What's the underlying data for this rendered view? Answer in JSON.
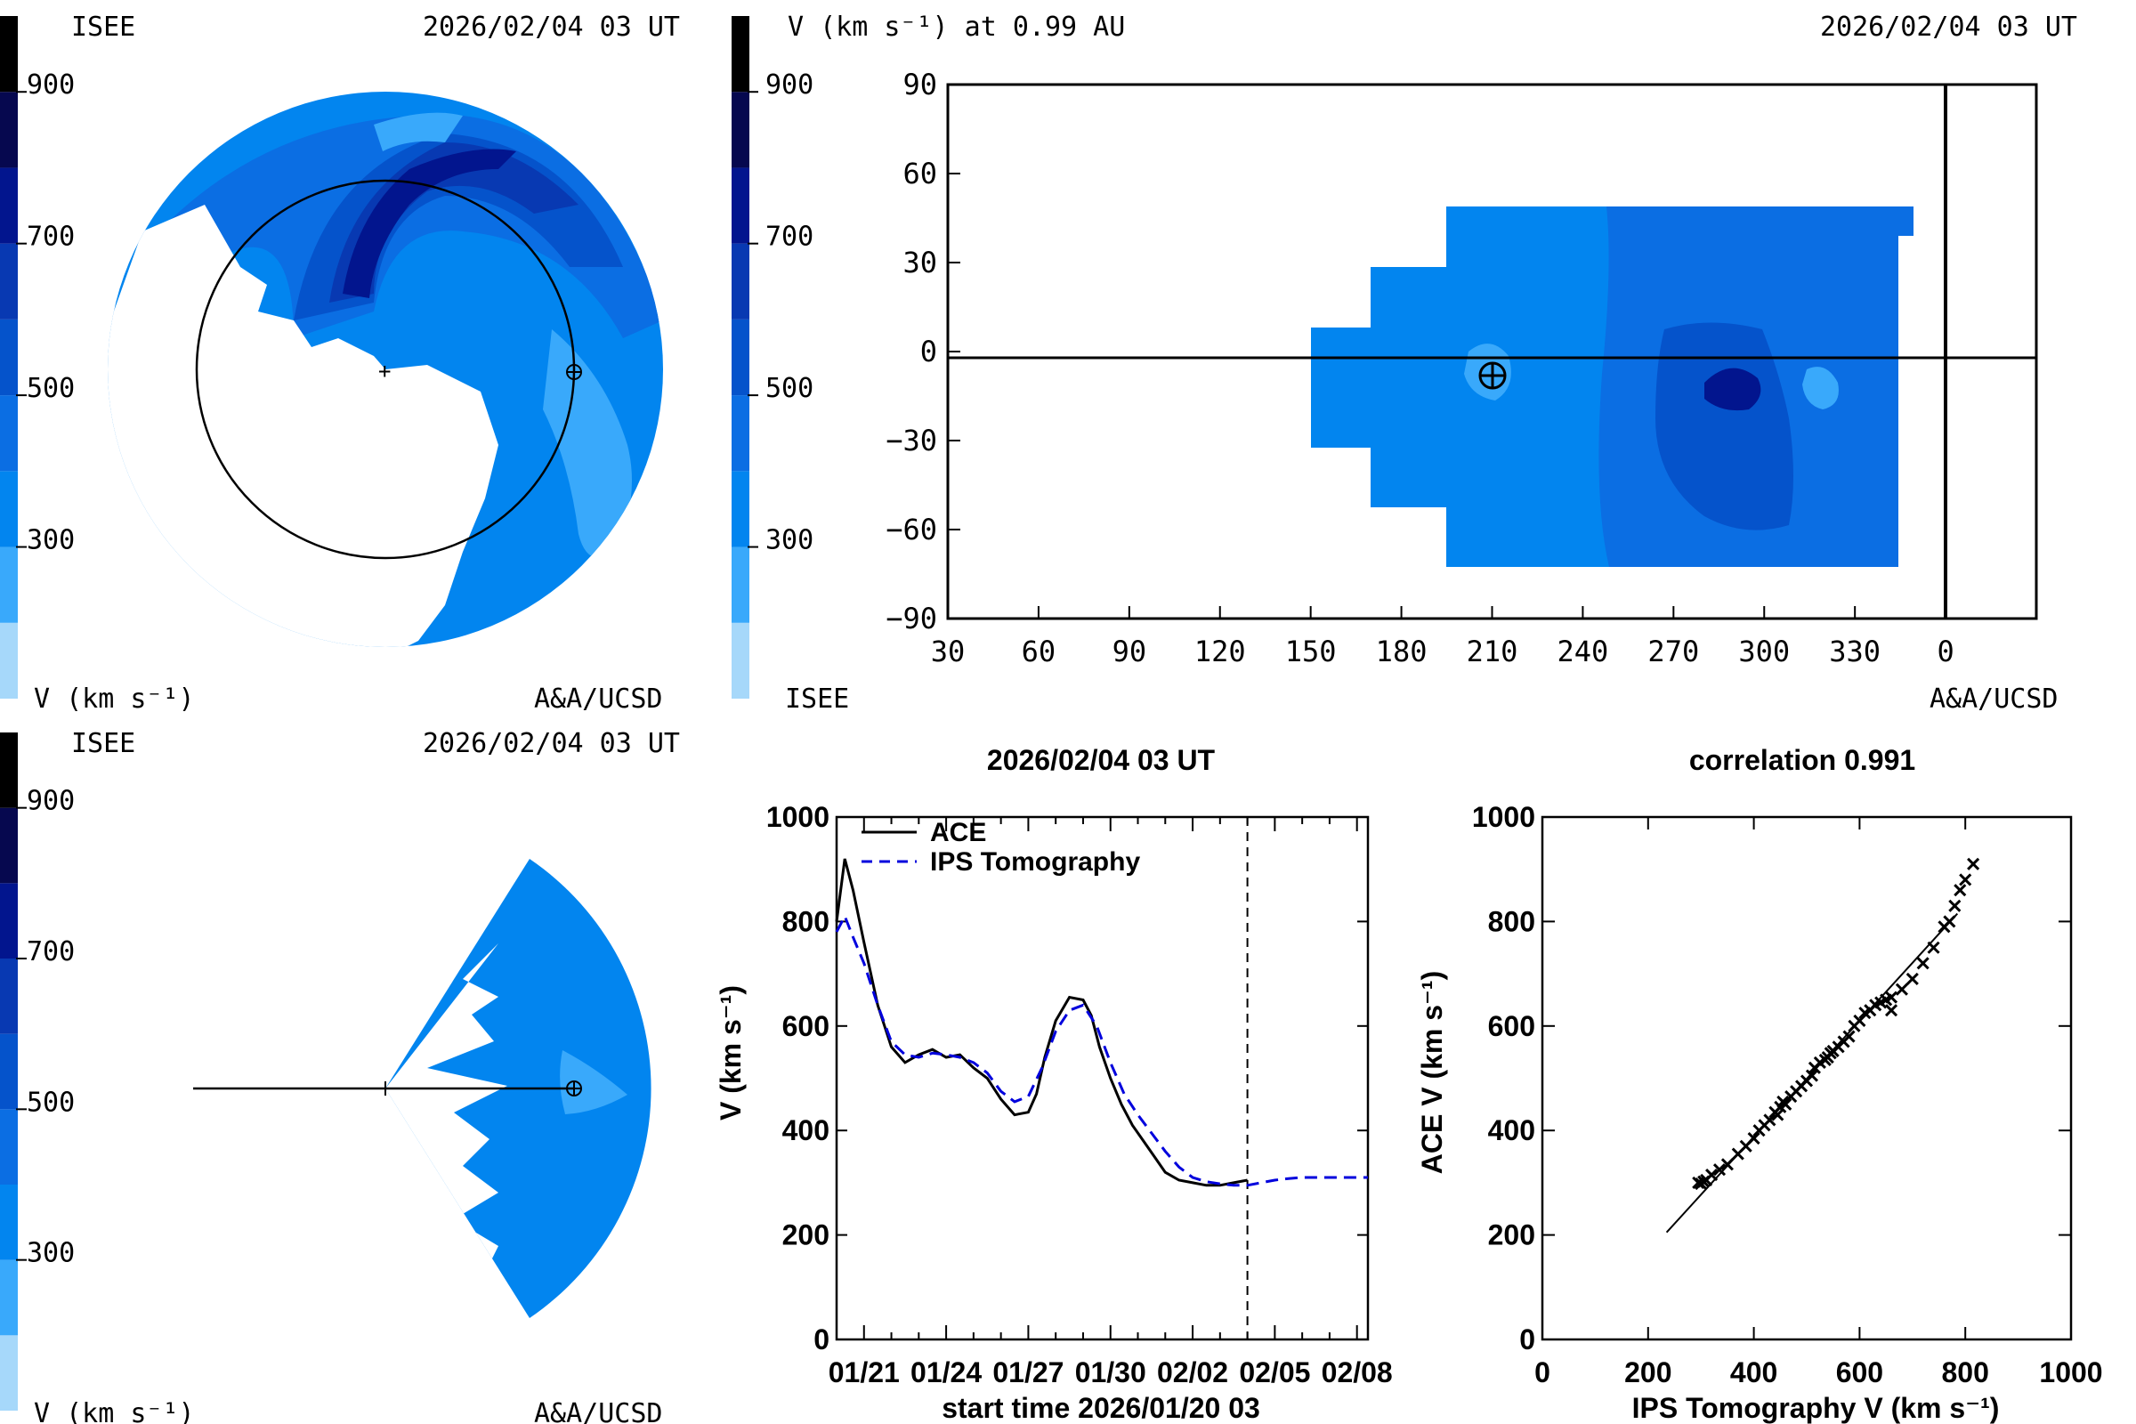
{
  "colors": {
    "c150": "#a6d8fa",
    "c250": "#39a9fb",
    "c350": "#0285ef",
    "c450": "#0b6ee3",
    "c550": "#0553cb",
    "c650": "#0839b2",
    "c750": "#02158e",
    "c850": "#06084f",
    "c950": "#000000",
    "line_blue": "#0000dd"
  },
  "colorbar": {
    "ticks": [
      "300",
      "500",
      "700",
      "900"
    ],
    "units_label": "V (km s⁻¹)"
  },
  "panel_tl": {
    "brand": "ISEE",
    "timestamp": "2026/02/04 03 UT",
    "units": "V (km s⁻¹)",
    "credit": "A&A/UCSD"
  },
  "panel_tr": {
    "title": "V (km s⁻¹) at 0.99 AU",
    "timestamp": "2026/02/04 03 UT",
    "brand": "ISEE",
    "credit": "A&A/UCSD",
    "chart_data": {
      "type": "heatmap",
      "x_ticks": [
        "30",
        "60",
        "90",
        "120",
        "150",
        "180",
        "210",
        "240",
        "270",
        "300",
        "330",
        "0"
      ],
      "y_ticks": [
        "90",
        "60",
        "30",
        "0",
        "−30",
        "−60",
        "−90"
      ],
      "xlim": [
        30,
        390
      ],
      "ylim": [
        -90,
        90
      ],
      "earth_position": [
        210,
        -6
      ],
      "vertical_marker_x": 360,
      "horizontal_marker_y": 0
    }
  },
  "panel_bl": {
    "brand": "ISEE",
    "timestamp": "2026/02/04 03 UT",
    "units": "V (km s⁻¹)",
    "credit": "A&A/UCSD"
  },
  "panel_br_timeseries": {
    "title": "2026/02/04 03 UT",
    "chart_data": {
      "type": "line",
      "ylabel": "V (km s⁻¹)",
      "xlabel": "start time 2026/01/20 03",
      "x_tick_labels": [
        "01/21",
        "01/24",
        "01/27",
        "01/30",
        "02/02",
        "02/05",
        "02/08"
      ],
      "x_tick_days": [
        1,
        4,
        7,
        10,
        13,
        16,
        19
      ],
      "xlim": [
        0,
        19.4
      ],
      "ylim": [
        0,
        1000
      ],
      "y_ticks": [
        "0",
        "200",
        "400",
        "600",
        "800",
        "1000"
      ],
      "now_day": 15,
      "series": [
        {
          "name": "ACE",
          "x": [
            0,
            0.3,
            0.6,
            1,
            1.5,
            2,
            2.5,
            3,
            3.5,
            4,
            4.5,
            5,
            5.5,
            6,
            6.5,
            7,
            7.3,
            7.6,
            8,
            8.5,
            9,
            9.3,
            9.6,
            10,
            10.4,
            10.8,
            11.2,
            11.6,
            12,
            12.5,
            13,
            13.5,
            14,
            14.5,
            15
          ],
          "y": [
            800,
            920,
            860,
            760,
            640,
            560,
            530,
            545,
            555,
            540,
            545,
            520,
            500,
            460,
            430,
            435,
            470,
            540,
            610,
            655,
            650,
            620,
            560,
            500,
            450,
            410,
            380,
            350,
            320,
            305,
            300,
            295,
            295,
            300,
            305
          ]
        },
        {
          "name": "IPS Tomography",
          "x": [
            0,
            0.3,
            0.6,
            1,
            1.5,
            2,
            2.5,
            3,
            3.5,
            4,
            4.5,
            5,
            5.5,
            6,
            6.5,
            7,
            7.5,
            8,
            8.5,
            9,
            9.5,
            10,
            10.5,
            11,
            11.5,
            12,
            12.5,
            13,
            13.5,
            14,
            14.5,
            15,
            15.5,
            16,
            16.5,
            17,
            17.5,
            18,
            18.5,
            19,
            19.4
          ],
          "y": [
            780,
            810,
            770,
            720,
            640,
            570,
            545,
            540,
            548,
            545,
            540,
            530,
            510,
            475,
            455,
            465,
            520,
            590,
            630,
            640,
            600,
            530,
            470,
            430,
            395,
            360,
            330,
            310,
            302,
            298,
            295,
            295,
            300,
            305,
            308,
            310,
            310,
            310,
            310,
            310,
            310
          ]
        }
      ]
    }
  },
  "panel_br_scatter": {
    "title": "correlation 0.991",
    "chart_data": {
      "type": "scatter",
      "xlabel": "IPS Tomography V (km s⁻¹)",
      "ylabel": "ACE V (km s⁻¹)",
      "xlim": [
        0,
        1000
      ],
      "ylim": [
        0,
        1000
      ],
      "x_ticks": [
        "0",
        "200",
        "400",
        "600",
        "800",
        "1000"
      ],
      "y_ticks": [
        "0",
        "200",
        "400",
        "600",
        "800",
        "1000"
      ],
      "fit_line": [
        [
          235,
          205
        ],
        [
          785,
          815
        ]
      ],
      "points": [
        [
          295,
          300
        ],
        [
          300,
          298
        ],
        [
          305,
          302
        ],
        [
          310,
          305
        ],
        [
          320,
          315
        ],
        [
          335,
          325
        ],
        [
          350,
          335
        ],
        [
          370,
          355
        ],
        [
          385,
          370
        ],
        [
          400,
          385
        ],
        [
          410,
          400
        ],
        [
          420,
          410
        ],
        [
          430,
          420
        ],
        [
          440,
          435
        ],
        [
          450,
          445
        ],
        [
          455,
          455
        ],
        [
          445,
          430
        ],
        [
          460,
          450
        ],
        [
          470,
          465
        ],
        [
          480,
          475
        ],
        [
          490,
          485
        ],
        [
          500,
          495
        ],
        [
          510,
          505
        ],
        [
          515,
          520
        ],
        [
          525,
          530
        ],
        [
          535,
          535
        ],
        [
          540,
          540
        ],
        [
          545,
          548
        ],
        [
          550,
          552
        ],
        [
          560,
          560
        ],
        [
          570,
          570
        ],
        [
          580,
          580
        ],
        [
          590,
          600
        ],
        [
          600,
          610
        ],
        [
          610,
          625
        ],
        [
          620,
          630
        ],
        [
          630,
          640
        ],
        [
          640,
          645
        ],
        [
          650,
          650
        ],
        [
          660,
          655
        ],
        [
          660,
          630
        ],
        [
          680,
          670
        ],
        [
          700,
          690
        ],
        [
          720,
          720
        ],
        [
          740,
          750
        ],
        [
          760,
          790
        ],
        [
          770,
          800
        ],
        [
          780,
          830
        ],
        [
          790,
          860
        ],
        [
          800,
          880
        ],
        [
          815,
          910
        ]
      ]
    }
  }
}
